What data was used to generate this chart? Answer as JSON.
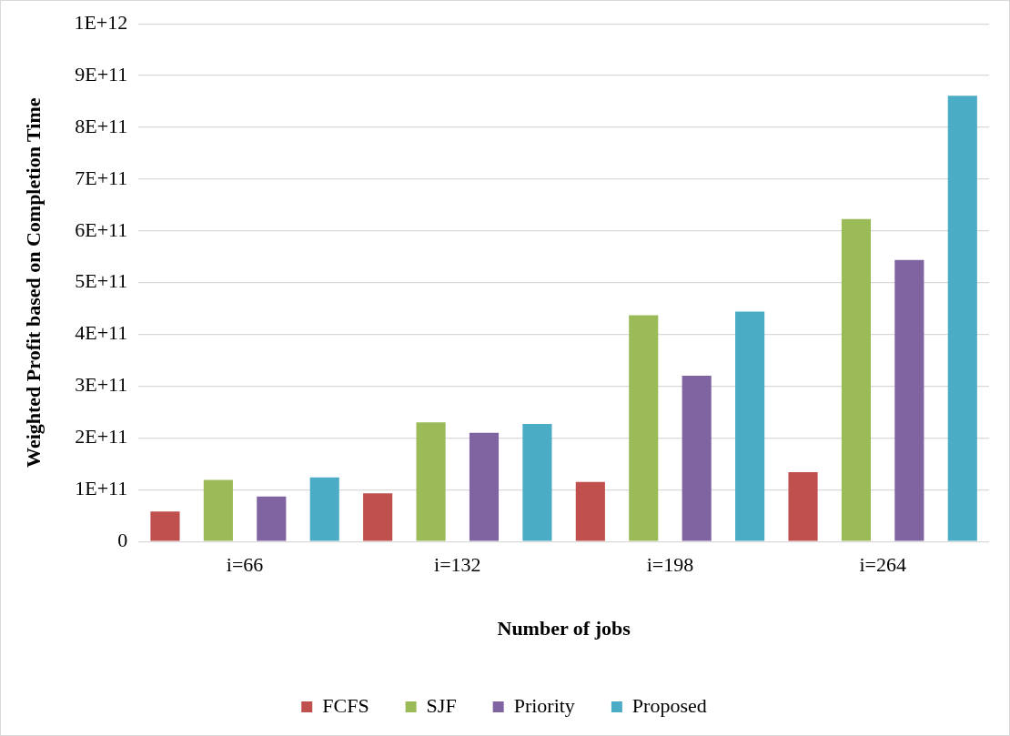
{
  "chart_data": {
    "type": "bar",
    "xlabel": "Number of jobs",
    "ylabel": "Weighted Profit based on Completion Time",
    "categories": [
      "i=66",
      "i=132",
      "i=198",
      "i=264"
    ],
    "series": [
      {
        "name": "FCFS",
        "color": "#c0504d",
        "values": [
          58000000000.0,
          93000000000.0,
          115000000000.0,
          134000000000.0
        ]
      },
      {
        "name": "SJF",
        "color": "#9bbb59",
        "values": [
          119000000000.0,
          230000000000.0,
          437000000000.0,
          623000000000.0
        ]
      },
      {
        "name": "Priority",
        "color": "#8064a2",
        "values": [
          87000000000.0,
          210000000000.0,
          320000000000.0,
          544000000000.0
        ]
      },
      {
        "name": "Proposed",
        "color": "#4bacc6",
        "values": [
          124000000000.0,
          227000000000.0,
          444000000000.0,
          861000000000.0
        ]
      }
    ],
    "ylim": [
      0,
      1000000000000.0
    ],
    "yticks": [
      0,
      {
        "value": 100000000000.0,
        "label": "1E+11"
      },
      {
        "value": 200000000000.0,
        "label": "2E+11"
      },
      {
        "value": 300000000000.0,
        "label": "3E+11"
      },
      {
        "value": 400000000000.0,
        "label": "4E+11"
      },
      {
        "value": 500000000000.0,
        "label": "5E+11"
      },
      {
        "value": 600000000000.0,
        "label": "6E+11"
      },
      {
        "value": 700000000000.0,
        "label": "7E+11"
      },
      {
        "value": 800000000000.0,
        "label": "8E+11"
      },
      {
        "value": 900000000000.0,
        "label": "9E+11"
      },
      {
        "value": 1000000000000.0,
        "label": "1E+12"
      }
    ],
    "grid": "y",
    "legend": "bottom"
  }
}
